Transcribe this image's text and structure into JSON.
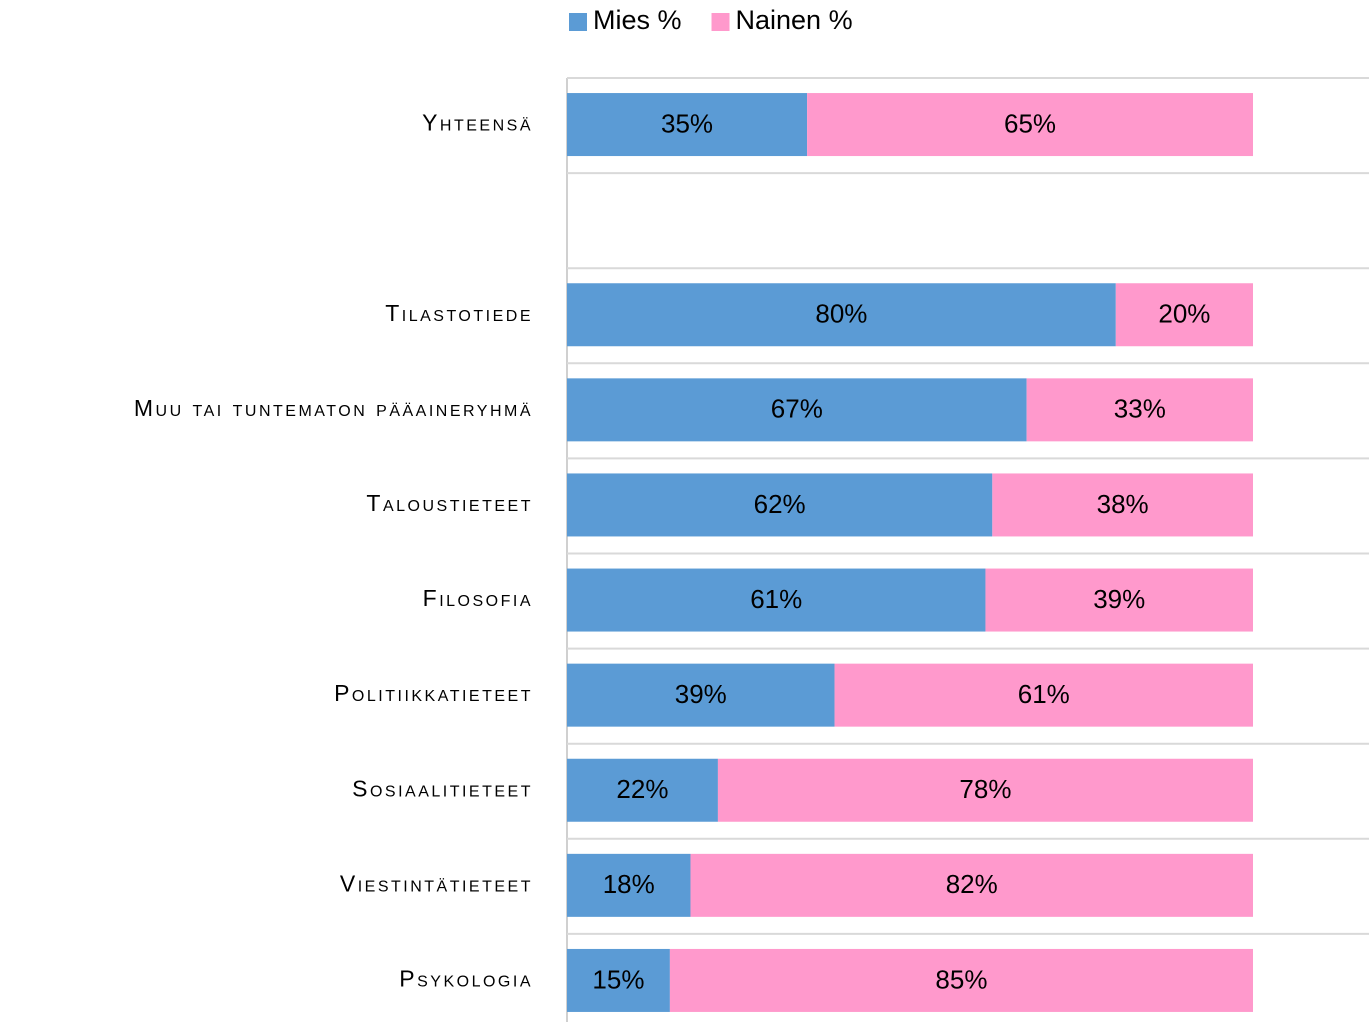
{
  "chart_data": {
    "type": "bar",
    "orientation": "horizontal",
    "stacked": true,
    "categories": [
      "Yhteensä",
      null,
      "Tilastotiede",
      "Muu tai tuntematon pääaineryhmä",
      "Taloustieteet",
      "Filosofia",
      "Politiikkatieteet",
      "Sosiaalitieteet",
      "Viestintätieteet",
      "Psykologia"
    ],
    "series": [
      {
        "name": "Mies %",
        "color": "#5b9bd5",
        "values": [
          35,
          null,
          80,
          67,
          62,
          61,
          39,
          22,
          18,
          15
        ],
        "value_labels": [
          "35%",
          null,
          "80%",
          "67%",
          "62%",
          "61%",
          "39%",
          "22%",
          "18%",
          "15%"
        ]
      },
      {
        "name": "Nainen %",
        "color": "#ff99cc",
        "values": [
          65,
          null,
          20,
          33,
          38,
          39,
          61,
          78,
          82,
          85
        ],
        "value_labels": [
          "65%",
          null,
          "20%",
          "33%",
          "38%",
          "39%",
          "61%",
          "78%",
          "82%",
          "85%"
        ]
      }
    ],
    "xlim": [
      0,
      100
    ],
    "legend": "top"
  }
}
